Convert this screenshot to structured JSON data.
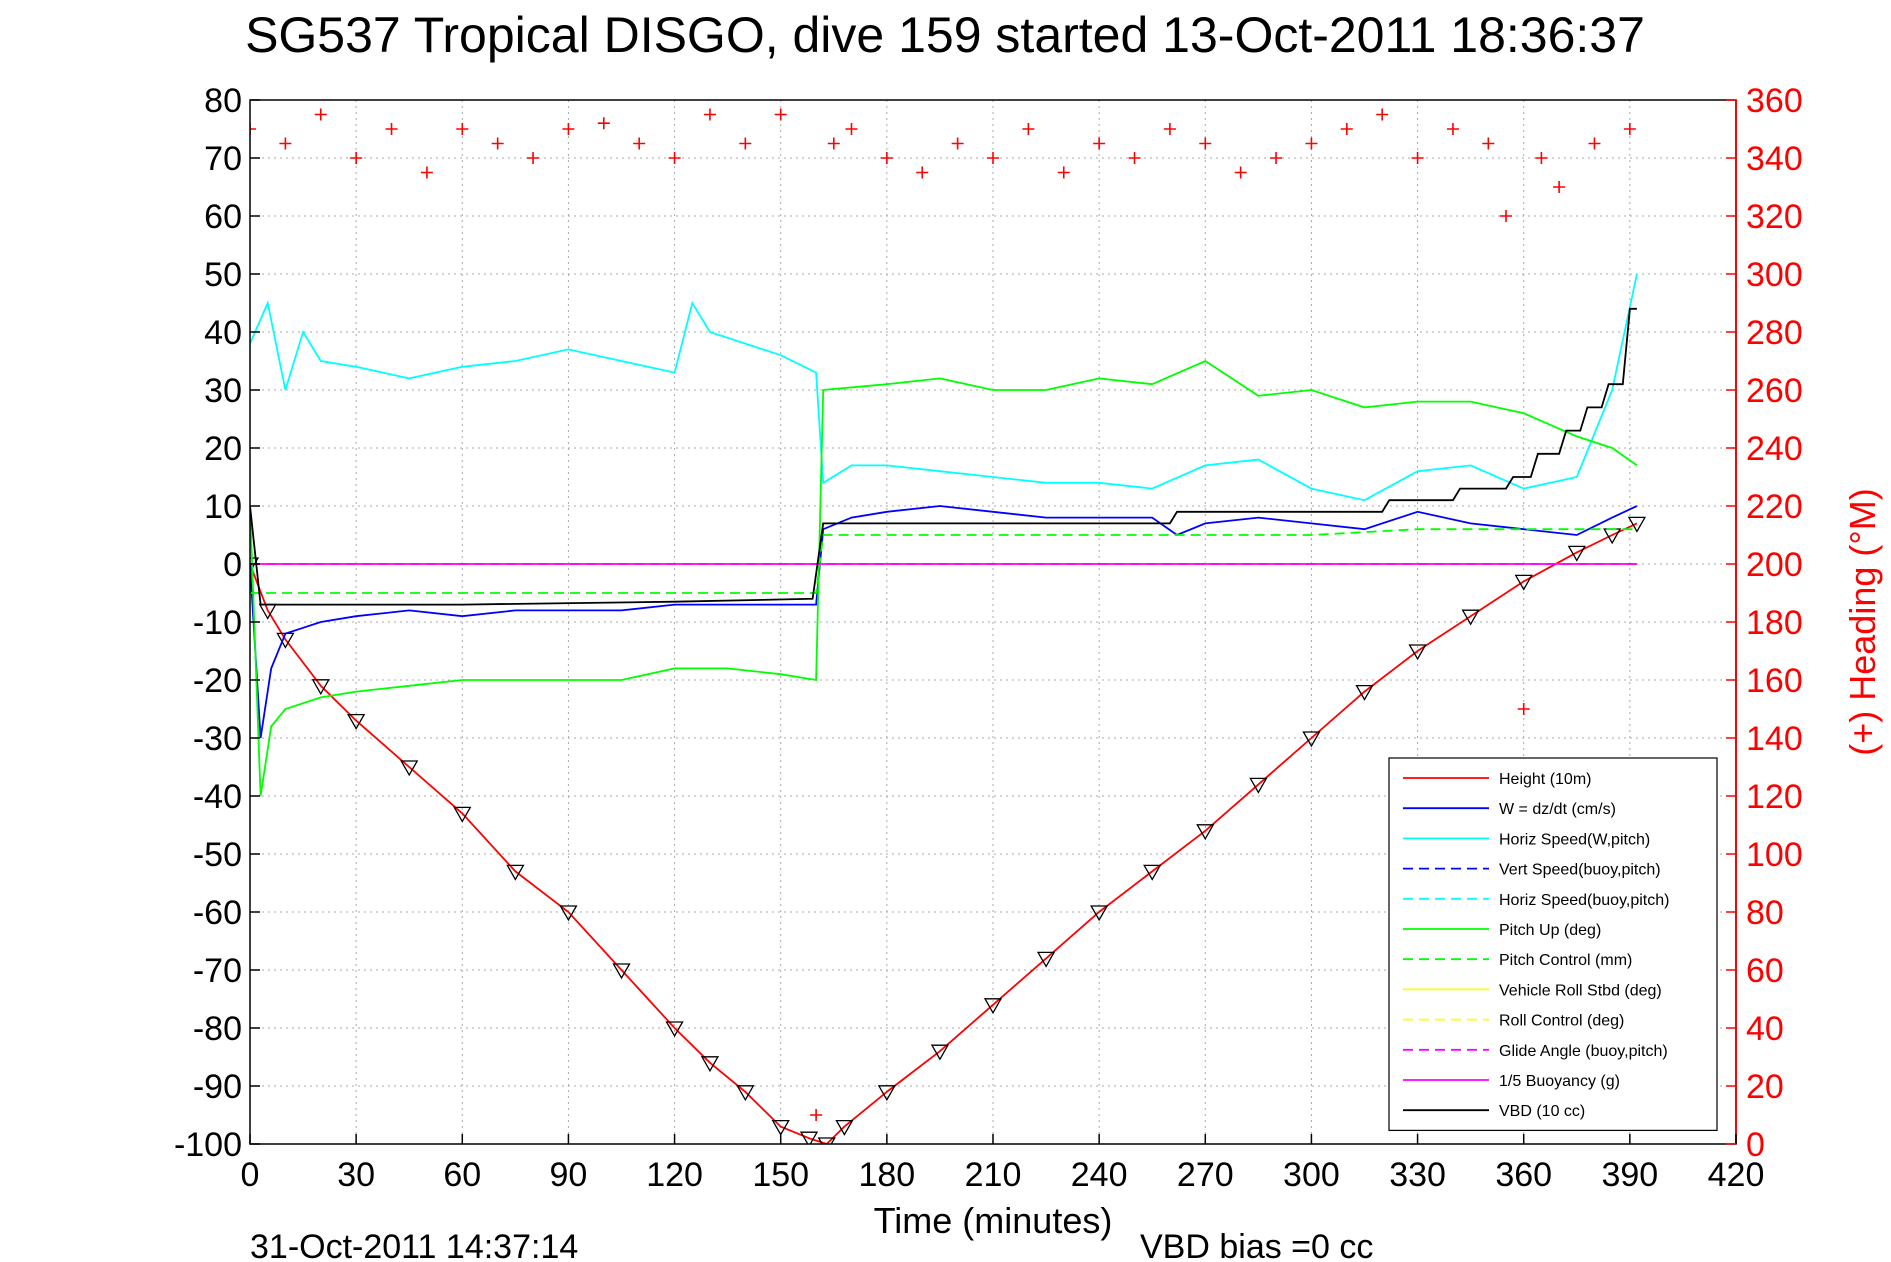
{
  "chart_data": {
    "type": "line",
    "title": "SG537 Tropical DISGO, dive 159 started 13-Oct-2011 18:36:37",
    "xlabel": "Time (minutes)",
    "ylabel_right": "(+) Heading (°M)",
    "footer_left": "31-Oct-2011 14:37:14",
    "footer_right": "VBD bias =0 cc",
    "xlim": [
      0,
      420
    ],
    "ylim": [
      -100,
      80
    ],
    "ylim_right": [
      0,
      360
    ],
    "x_ticks": [
      "0",
      "30",
      "60",
      "90",
      "120",
      "150",
      "180",
      "210",
      "240",
      "270",
      "300",
      "330",
      "360",
      "390",
      "420"
    ],
    "y_ticks": [
      "80",
      "70",
      "60",
      "50",
      "40",
      "30",
      "20",
      "10",
      "0",
      "-10",
      "-20",
      "-30",
      "-40",
      "-50",
      "-60",
      "-70",
      "-80",
      "-90",
      "-100"
    ],
    "y_ticks_right": [
      "360",
      "340",
      "320",
      "300",
      "280",
      "260",
      "240",
      "220",
      "200",
      "180",
      "160",
      "140",
      "120",
      "100",
      "80",
      "60",
      "40",
      "20",
      "0"
    ],
    "grid": true,
    "legend_position": "bottom-right",
    "series": [
      {
        "name": "Height (10m)",
        "color": "#ff0000",
        "dash": "solid",
        "marker": "triangle",
        "x": [
          0,
          5,
          10,
          20,
          30,
          45,
          60,
          75,
          90,
          105,
          120,
          130,
          140,
          150,
          158,
          163,
          168,
          180,
          195,
          210,
          225,
          240,
          255,
          270,
          285,
          300,
          315,
          330,
          345,
          360,
          375,
          385,
          392
        ],
        "y": [
          0,
          -8,
          -13,
          -21,
          -27,
          -35,
          -43,
          -53,
          -60,
          -70,
          -80,
          -86,
          -91,
          -97,
          -99,
          -100,
          -97,
          -91,
          -84,
          -76,
          -68,
          -60,
          -53,
          -46,
          -38,
          -30,
          -22,
          -15,
          -9,
          -3,
          2,
          5,
          7
        ]
      },
      {
        "name": "W = dz/dt (cm/s)",
        "color": "#0000ff",
        "dash": "solid",
        "x": [
          0,
          3,
          6,
          10,
          15,
          20,
          30,
          45,
          60,
          75,
          90,
          105,
          120,
          135,
          150,
          160,
          162,
          170,
          180,
          195,
          210,
          225,
          240,
          255,
          262,
          270,
          285,
          300,
          315,
          330,
          345,
          360,
          375,
          385,
          392
        ],
        "y": [
          0,
          -30,
          -18,
          -12,
          -11,
          -10,
          -9,
          -8,
          -9,
          -8,
          -8,
          -8,
          -7,
          -7,
          -7,
          -7,
          6,
          8,
          9,
          10,
          9,
          8,
          8,
          8,
          5,
          7,
          8,
          7,
          6,
          9,
          7,
          6,
          5,
          8,
          10
        ]
      },
      {
        "name": "Horiz Speed(W,pitch)",
        "color": "#00ffff",
        "dash": "solid",
        "x": [
          0,
          5,
          10,
          15,
          20,
          30,
          45,
          60,
          75,
          90,
          105,
          120,
          125,
          130,
          140,
          150,
          160,
          162,
          170,
          180,
          195,
          210,
          225,
          240,
          255,
          270,
          285,
          300,
          315,
          330,
          345,
          360,
          375,
          385,
          392
        ],
        "y": [
          38,
          45,
          30,
          40,
          35,
          34,
          32,
          34,
          35,
          37,
          35,
          33,
          45,
          40,
          38,
          36,
          33,
          14,
          17,
          17,
          16,
          15,
          14,
          14,
          13,
          17,
          18,
          13,
          11,
          16,
          17,
          13,
          15,
          30,
          50
        ]
      },
      {
        "name": "Vert Speed(buoy,pitch)",
        "color": "#0000ff",
        "dash": "dashed",
        "x": [
          0,
          392
        ],
        "y": [
          0,
          0
        ]
      },
      {
        "name": "Horiz Speed(buoy,pitch)",
        "color": "#00ffff",
        "dash": "dashed",
        "x": [
          0,
          392
        ],
        "y": [
          0,
          0
        ]
      },
      {
        "name": "Pitch Up (deg)",
        "color": "#00ff00",
        "dash": "solid",
        "x": [
          0,
          3,
          6,
          10,
          15,
          20,
          30,
          45,
          60,
          75,
          90,
          105,
          120,
          135,
          150,
          160,
          162,
          180,
          195,
          210,
          225,
          240,
          255,
          270,
          285,
          300,
          315,
          330,
          345,
          360,
          375,
          385,
          392
        ],
        "y": [
          10,
          -40,
          -28,
          -25,
          -24,
          -23,
          -22,
          -21,
          -20,
          -20,
          -20,
          -20,
          -18,
          -18,
          -19,
          -20,
          30,
          31,
          32,
          30,
          30,
          32,
          31,
          35,
          29,
          30,
          27,
          28,
          28,
          26,
          22,
          20,
          17
        ]
      },
      {
        "name": "Pitch Control (mm)",
        "color": "#00ff00",
        "dash": "dashed",
        "x": [
          0,
          30,
          60,
          90,
          120,
          150,
          160,
          162,
          210,
          255,
          270,
          300,
          330,
          360,
          392
        ],
        "y": [
          -5,
          -5,
          -5,
          -5,
          -5,
          -5,
          -5,
          5,
          5,
          5,
          5,
          5,
          6,
          6,
          6
        ]
      },
      {
        "name": "Vehicle Roll Stbd (deg)",
        "color": "#ffff00",
        "dash": "solid",
        "x": [
          0,
          392
        ],
        "y": [
          0,
          0
        ]
      },
      {
        "name": "Roll Control (deg)",
        "color": "#ffff00",
        "dash": "dashed",
        "x": [
          0,
          392
        ],
        "y": [
          0,
          0
        ]
      },
      {
        "name": "Glide Angle (buoy,pitch)",
        "color": "#ff00ff",
        "dash": "dashed",
        "x": [
          0,
          392
        ],
        "y": [
          0,
          0
        ]
      },
      {
        "name": "1/5 Buoyancy (g)",
        "color": "#ff00ff",
        "dash": "solid",
        "x": [
          0,
          392
        ],
        "y": [
          0,
          0
        ]
      },
      {
        "name": "VBD (10 cc)",
        "color": "#000000",
        "dash": "solid",
        "x": [
          0,
          3,
          60,
          120,
          159,
          162,
          260,
          262,
          320,
          322,
          340,
          342,
          355,
          357,
          362,
          364,
          370,
          372,
          376,
          378,
          382,
          384,
          388,
          390,
          392
        ],
        "y": [
          10,
          -7,
          -7,
          -6.5,
          -6,
          7,
          7,
          9,
          9,
          11,
          11,
          13,
          13,
          15,
          15,
          19,
          19,
          23,
          23,
          27,
          27,
          31,
          31,
          44,
          44
        ]
      },
      {
        "name": "Heading",
        "axis": "right",
        "color": "#ff0000",
        "dash": "none",
        "marker": "plus",
        "x": [
          0,
          10,
          20,
          30,
          40,
          50,
          60,
          70,
          80,
          90,
          100,
          110,
          120,
          130,
          140,
          150,
          160,
          165,
          170,
          180,
          190,
          200,
          210,
          220,
          230,
          240,
          250,
          260,
          270,
          280,
          290,
          300,
          310,
          320,
          330,
          340,
          350,
          355,
          360,
          365,
          370,
          380,
          390
        ],
        "y": [
          350,
          345,
          355,
          340,
          350,
          335,
          350,
          345,
          340,
          350,
          352,
          345,
          340,
          355,
          345,
          355,
          10,
          345,
          350,
          340,
          335,
          345,
          340,
          350,
          335,
          345,
          340,
          350,
          345,
          335,
          340,
          345,
          350,
          355,
          340,
          350,
          345,
          320,
          150,
          340,
          330,
          345,
          350
        ]
      }
    ]
  }
}
